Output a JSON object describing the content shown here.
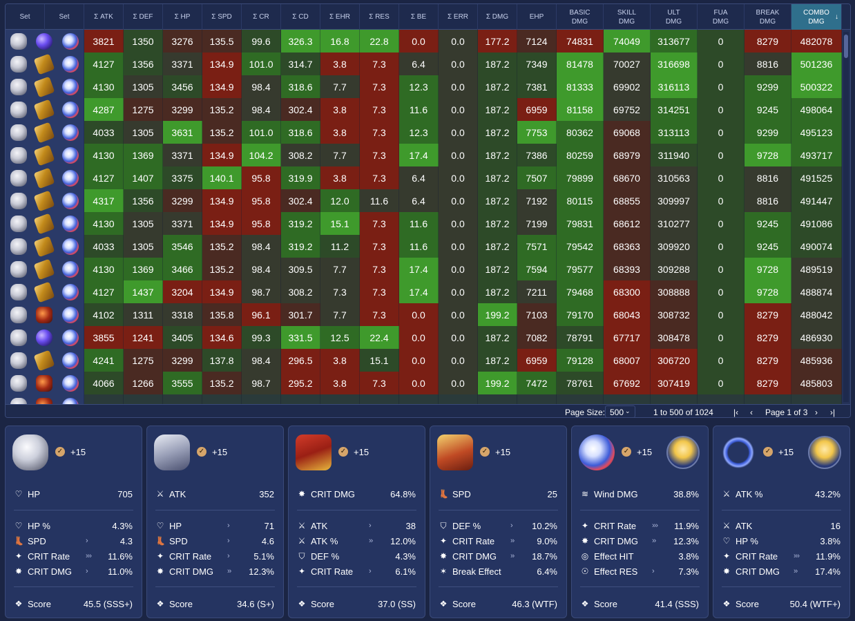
{
  "grid": {
    "headers": [
      "Set",
      "Set",
      "Σ ATK",
      "Σ DEF",
      "Σ HP",
      "Σ SPD",
      "Σ CR",
      "Σ CD",
      "Σ EHR",
      "Σ RES",
      "Σ BE",
      "Σ ERR",
      "Σ DMG",
      "EHP",
      "BASIC\nDMG",
      "SKILL\nDMG",
      "ULT\nDMG",
      "FUA\nDMG",
      "BREAK\nDMG",
      "COMBO\nDMG"
    ],
    "sorted_column": "COMBO DMG",
    "sort_direction_icon": "arrow-down-icon",
    "rows": [
      {
        "sets": [
          "helm",
          "orb",
          "blue"
        ],
        "values": [
          "3821",
          "1350",
          "3276",
          "135.5",
          "99.6",
          "326.3",
          "16.8",
          "22.8",
          "0.0",
          "0.0",
          "177.2",
          "7124",
          "74831",
          "74049",
          "313677",
          "0",
          "8279",
          "482078"
        ]
      },
      {
        "sets": [
          "helm",
          "gold",
          "blue"
        ],
        "values": [
          "4127",
          "1356",
          "3371",
          "134.9",
          "101.0",
          "314.7",
          "3.8",
          "7.3",
          "6.4",
          "0.0",
          "187.2",
          "7349",
          "81478",
          "70027",
          "316698",
          "0",
          "8816",
          "501236"
        ]
      },
      {
        "sets": [
          "helm",
          "gold",
          "blue"
        ],
        "values": [
          "4130",
          "1305",
          "3456",
          "134.9",
          "98.4",
          "318.6",
          "7.7",
          "7.3",
          "12.3",
          "0.0",
          "187.2",
          "7381",
          "81333",
          "69902",
          "316113",
          "0",
          "9299",
          "500322"
        ]
      },
      {
        "sets": [
          "helm",
          "gold",
          "blue"
        ],
        "values": [
          "4287",
          "1275",
          "3299",
          "135.2",
          "98.4",
          "302.4",
          "3.8",
          "7.3",
          "11.6",
          "0.0",
          "187.2",
          "6959",
          "81158",
          "69752",
          "314251",
          "0",
          "9245",
          "498064"
        ]
      },
      {
        "sets": [
          "helm",
          "gold",
          "blue"
        ],
        "values": [
          "4033",
          "1305",
          "3631",
          "135.2",
          "101.0",
          "318.6",
          "3.8",
          "7.3",
          "12.3",
          "0.0",
          "187.2",
          "7753",
          "80362",
          "69068",
          "313113",
          "0",
          "9299",
          "495123"
        ]
      },
      {
        "sets": [
          "helm",
          "gold",
          "blue"
        ],
        "values": [
          "4130",
          "1369",
          "3371",
          "134.9",
          "104.2",
          "308.2",
          "7.7",
          "7.3",
          "17.4",
          "0.0",
          "187.2",
          "7386",
          "80259",
          "68979",
          "311940",
          "0",
          "9728",
          "493717"
        ]
      },
      {
        "sets": [
          "helm",
          "gold",
          "blue"
        ],
        "values": [
          "4127",
          "1407",
          "3375",
          "140.1",
          "95.8",
          "319.9",
          "3.8",
          "7.3",
          "6.4",
          "0.0",
          "187.2",
          "7507",
          "79899",
          "68670",
          "310563",
          "0",
          "8816",
          "491525"
        ]
      },
      {
        "sets": [
          "helm",
          "gold",
          "blue"
        ],
        "values": [
          "4317",
          "1356",
          "3299",
          "134.9",
          "95.8",
          "302.4",
          "12.0",
          "11.6",
          "6.4",
          "0.0",
          "187.2",
          "7192",
          "80115",
          "68855",
          "309997",
          "0",
          "8816",
          "491447"
        ]
      },
      {
        "sets": [
          "helm",
          "gold",
          "blue"
        ],
        "values": [
          "4130",
          "1305",
          "3371",
          "134.9",
          "95.8",
          "319.2",
          "15.1",
          "7.3",
          "11.6",
          "0.0",
          "187.2",
          "7199",
          "79831",
          "68612",
          "310277",
          "0",
          "9245",
          "491086"
        ]
      },
      {
        "sets": [
          "helm",
          "gold",
          "blue"
        ],
        "values": [
          "4033",
          "1305",
          "3546",
          "135.2",
          "98.4",
          "319.2",
          "11.2",
          "7.3",
          "11.6",
          "0.0",
          "187.2",
          "7571",
          "79542",
          "68363",
          "309920",
          "0",
          "9245",
          "490074"
        ]
      },
      {
        "sets": [
          "helm",
          "gold",
          "blue"
        ],
        "values": [
          "4130",
          "1369",
          "3466",
          "135.2",
          "98.4",
          "309.5",
          "7.7",
          "7.3",
          "17.4",
          "0.0",
          "187.2",
          "7594",
          "79577",
          "68393",
          "309288",
          "0",
          "9728",
          "489519"
        ]
      },
      {
        "sets": [
          "helm",
          "gold",
          "blue"
        ],
        "values": [
          "4127",
          "1437",
          "3204",
          "134.9",
          "98.7",
          "308.2",
          "7.3",
          "7.3",
          "17.4",
          "0.0",
          "187.2",
          "7211",
          "79468",
          "68300",
          "308888",
          "0",
          "9728",
          "488874"
        ]
      },
      {
        "sets": [
          "helm",
          "fire",
          "blue"
        ],
        "values": [
          "4102",
          "1311",
          "3318",
          "135.8",
          "96.1",
          "301.7",
          "7.7",
          "7.3",
          "0.0",
          "0.0",
          "199.2",
          "7103",
          "79170",
          "68043",
          "308732",
          "0",
          "8279",
          "488042"
        ]
      },
      {
        "sets": [
          "helm",
          "orb",
          "blue"
        ],
        "values": [
          "3855",
          "1241",
          "3405",
          "134.6",
          "99.3",
          "331.5",
          "12.5",
          "22.4",
          "0.0",
          "0.0",
          "187.2",
          "7082",
          "78791",
          "67717",
          "308478",
          "0",
          "8279",
          "486930"
        ]
      },
      {
        "sets": [
          "helm",
          "gold",
          "blue"
        ],
        "values": [
          "4241",
          "1275",
          "3299",
          "137.8",
          "98.4",
          "296.5",
          "3.8",
          "15.1",
          "0.0",
          "0.0",
          "187.2",
          "6959",
          "79128",
          "68007",
          "306720",
          "0",
          "8279",
          "485936"
        ]
      },
      {
        "sets": [
          "helm",
          "fire",
          "blue"
        ],
        "values": [
          "4066",
          "1266",
          "3555",
          "135.2",
          "98.7",
          "295.2",
          "3.8",
          "7.3",
          "0.0",
          "0.0",
          "199.2",
          "7472",
          "78761",
          "67692",
          "307419",
          "0",
          "8279",
          "485803"
        ]
      },
      {
        "sets": [
          "helm",
          "fire",
          "blue"
        ],
        "values": [
          "",
          "",
          "",
          "",
          "",
          "",
          "",
          "",
          "",
          "",
          "",
          "",
          "",
          "",
          "",
          "",
          "",
          ""
        ]
      }
    ],
    "cell_colors": {
      "best": "#3f9a2c",
      "good": "#2f6b24",
      "mid_good": "#2d4a28",
      "neutral": "#363a2e",
      "mid_bad": "#4a2a22",
      "bad": "#7a1f14"
    }
  },
  "pager": {
    "page_size_label": "Page Size:",
    "page_size_value": "500",
    "range": "1 to 500 of 1024",
    "page_info": "Page 1 of 3",
    "first_icon": "first-page-icon",
    "prev_icon": "prev-page-icon",
    "next_icon": "next-page-icon",
    "last_icon": "last-page-icon"
  },
  "cards": [
    {
      "piece": "helm",
      "level": "+15",
      "main": {
        "icon": "heart-icon",
        "name": "HP",
        "value": "705"
      },
      "subs": [
        {
          "icon": "heart-icon",
          "name": "HP %",
          "arrows": "",
          "value": "4.3%"
        },
        {
          "icon": "boot-icon",
          "name": "SPD",
          "arrows": "›",
          "value": "4.3"
        },
        {
          "icon": "crit-icon",
          "name": "CRIT Rate",
          "arrows": "›››",
          "value": "11.6%"
        },
        {
          "icon": "crit-dmg-icon",
          "name": "CRIT DMG",
          "arrows": "›",
          "value": "11.0%"
        }
      ],
      "score_label": "Score",
      "score": "45.5 (SSS+)"
    },
    {
      "piece": "gloves",
      "level": "+15",
      "main": {
        "icon": "sword-icon",
        "name": "ATK",
        "value": "352"
      },
      "subs": [
        {
          "icon": "heart-icon",
          "name": "HP",
          "arrows": "›",
          "value": "71"
        },
        {
          "icon": "boot-icon",
          "name": "SPD",
          "arrows": "›",
          "value": "4.6"
        },
        {
          "icon": "crit-icon",
          "name": "CRIT Rate",
          "arrows": "›",
          "value": "5.1%"
        },
        {
          "icon": "crit-dmg-icon",
          "name": "CRIT DMG",
          "arrows": "››",
          "value": "12.3%"
        }
      ],
      "score_label": "Score",
      "score": "34.6 (S+)"
    },
    {
      "piece": "body",
      "level": "+15",
      "main": {
        "icon": "crit-dmg-icon",
        "name": "CRIT DMG",
        "value": "64.8%"
      },
      "subs": [
        {
          "icon": "sword-icon",
          "name": "ATK",
          "arrows": "›",
          "value": "38"
        },
        {
          "icon": "sword-icon",
          "name": "ATK %",
          "arrows": "››",
          "value": "12.0%"
        },
        {
          "icon": "shield-icon",
          "name": "DEF %",
          "arrows": "",
          "value": "4.3%"
        },
        {
          "icon": "crit-icon",
          "name": "CRIT Rate",
          "arrows": "›",
          "value": "6.1%"
        }
      ],
      "score_label": "Score",
      "score": "37.0 (SS)"
    },
    {
      "piece": "feet",
      "level": "+15",
      "main": {
        "icon": "boot-icon",
        "name": "SPD",
        "value": "25"
      },
      "subs": [
        {
          "icon": "shield-icon",
          "name": "DEF %",
          "arrows": "›",
          "value": "10.2%"
        },
        {
          "icon": "crit-icon",
          "name": "CRIT Rate",
          "arrows": "››",
          "value": "9.0%"
        },
        {
          "icon": "crit-dmg-icon",
          "name": "CRIT DMG",
          "arrows": "››",
          "value": "18.7%"
        },
        {
          "icon": "break-icon",
          "name": "Break Effect",
          "arrows": "",
          "value": "6.4%"
        }
      ],
      "score_label": "Score",
      "score": "46.3 (WTF)"
    },
    {
      "piece": "sphere",
      "level": "+15",
      "avatar": true,
      "main": {
        "icon": "wind-icon",
        "name": "Wind DMG",
        "value": "38.8%"
      },
      "subs": [
        {
          "icon": "crit-icon",
          "name": "CRIT Rate",
          "arrows": "›››",
          "value": "11.9%"
        },
        {
          "icon": "crit-dmg-icon",
          "name": "CRIT DMG",
          "arrows": "››",
          "value": "12.3%"
        },
        {
          "icon": "ehr-icon",
          "name": "Effect HIT",
          "arrows": "",
          "value": "3.8%"
        },
        {
          "icon": "res-icon",
          "name": "Effect RES",
          "arrows": "›",
          "value": "7.3%"
        }
      ],
      "score_label": "Score",
      "score": "41.4 (SSS)"
    },
    {
      "piece": "rope",
      "level": "+15",
      "avatar": true,
      "main": {
        "icon": "sword-icon",
        "name": "ATK %",
        "value": "43.2%"
      },
      "subs": [
        {
          "icon": "sword-icon",
          "name": "ATK",
          "arrows": "",
          "value": "16"
        },
        {
          "icon": "heart-icon",
          "name": "HP %",
          "arrows": "",
          "value": "3.8%"
        },
        {
          "icon": "crit-icon",
          "name": "CRIT Rate",
          "arrows": "›››",
          "value": "11.9%"
        },
        {
          "icon": "crit-dmg-icon",
          "name": "CRIT DMG",
          "arrows": "››",
          "value": "17.4%"
        }
      ],
      "score_label": "Score",
      "score": "50.4 (WTF+)"
    }
  ]
}
